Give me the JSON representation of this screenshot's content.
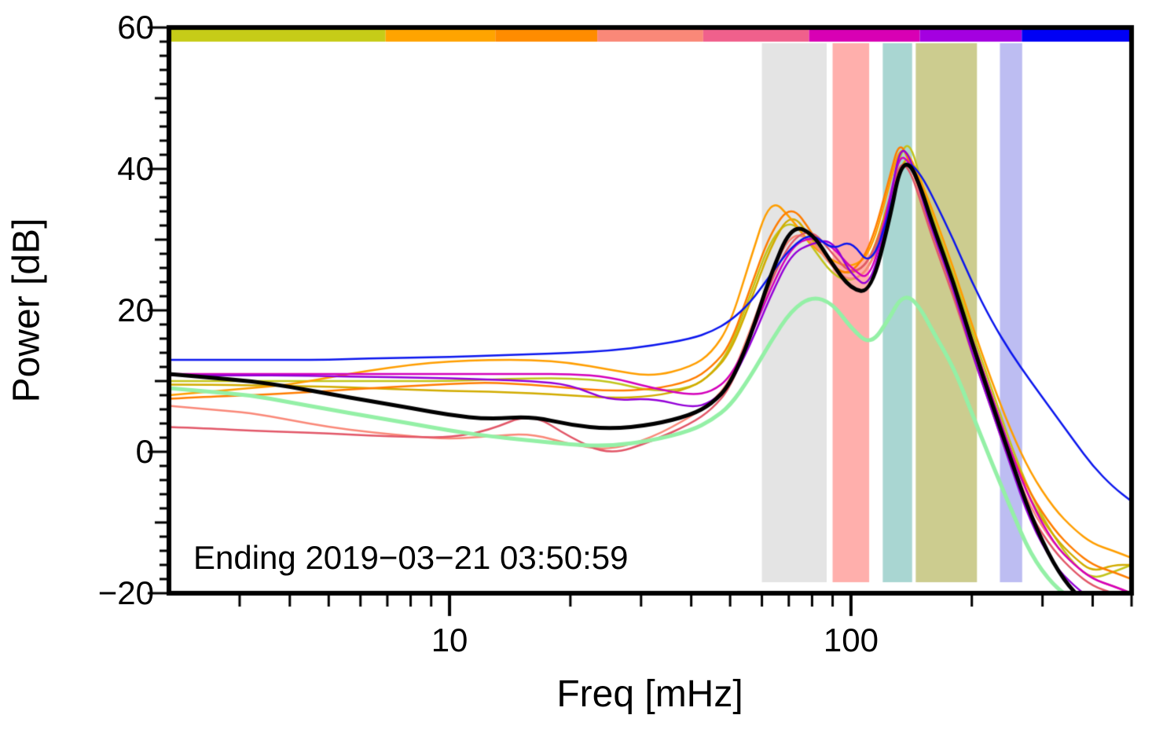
{
  "chart_data": {
    "type": "line",
    "title": "",
    "xlabel": "Freq [mHz]",
    "ylabel": "Power [dB]",
    "annotation": "Ending 2019−03−21 03:50:59",
    "xscale": "log",
    "xlim": [
      2,
      500
    ],
    "ylim": [
      -20,
      60
    ],
    "grid": false,
    "legend": "none",
    "x_tick_values": [
      10,
      100
    ],
    "x_tick_labels": [
      "10",
      "100"
    ],
    "x_minor_ticks": [
      3,
      4,
      5,
      6,
      7,
      8,
      9,
      20,
      30,
      40,
      50,
      60,
      70,
      80,
      90,
      200,
      300,
      400,
      500
    ],
    "y_tick_values": [
      -20,
      0,
      20,
      40,
      60
    ],
    "y_tick_labels": [
      "−20",
      "0",
      "20",
      "40",
      "60"
    ],
    "y_minor_step": 2,
    "bands": [
      {
        "name": "band-gray",
        "from": 60,
        "to": 87,
        "color": "#e4e4e4"
      },
      {
        "name": "band-red",
        "from": 90,
        "to": 111,
        "color": "#ffafac"
      },
      {
        "name": "band-teal",
        "from": 120,
        "to": 142,
        "color": "#a9d6d2"
      },
      {
        "name": "band-olive",
        "from": 145,
        "to": 206,
        "color": "#cccc8f"
      },
      {
        "name": "band-lavender",
        "from": 235,
        "to": 267,
        "color": "#bdbdf2"
      }
    ],
    "top_bar": [
      {
        "color": "#c6cc18",
        "to": 0.225
      },
      {
        "color": "#ffa400",
        "to": 0.339
      },
      {
        "color": "#ff8c00",
        "to": 0.445
      },
      {
        "color": "#fa8878",
        "to": 0.555
      },
      {
        "color": "#f0608c",
        "to": 0.665
      },
      {
        "color": "#d800b4",
        "to": 0.78
      },
      {
        "color": "#a400e0",
        "to": 0.886
      },
      {
        "color": "#0000f5",
        "to": 1.0
      }
    ],
    "x": [
      2,
      2.5,
      3.2,
      4,
      5,
      6.3,
      8,
      10,
      12.5,
      16,
      20,
      25,
      32,
      40,
      45,
      50,
      56,
      63,
      71,
      80,
      90,
      100,
      112,
      125,
      132,
      140,
      150,
      160,
      180,
      200,
      224,
      250,
      280,
      320,
      360,
      400,
      450,
      500
    ],
    "series": [
      {
        "name": "spectrum-yellow-green",
        "color": "#c2c41b",
        "width": 2.5,
        "y": [
          10,
          10,
          10,
          10,
          10,
          10,
          10,
          10,
          10.2,
          10.4,
          10.4,
          10,
          8.5,
          9,
          11,
          14.5,
          22,
          30,
          33,
          29,
          25,
          24,
          26,
          35,
          42,
          44,
          38,
          33,
          25,
          17,
          9,
          1,
          -6,
          -12,
          -16,
          -18,
          -17,
          -16
        ]
      },
      {
        "name": "spectrum-gold",
        "color": "#d2ac00",
        "width": 2.5,
        "y": [
          9.5,
          9.5,
          9.4,
          9.3,
          9.2,
          9,
          8.8,
          8.6,
          8.5,
          8.3,
          8,
          7.6,
          7.8,
          9,
          11,
          14,
          21,
          29,
          34,
          30,
          26,
          25,
          27,
          36,
          40,
          42,
          37,
          32,
          24,
          16,
          8,
          0,
          -7,
          -12,
          -15,
          -17,
          -16,
          -16
        ]
      },
      {
        "name": "spectrum-orange",
        "color": "#ff9e00",
        "width": 2.5,
        "y": [
          8,
          8.5,
          9,
          9.5,
          10.5,
          11.5,
          12.3,
          12.8,
          13,
          13,
          12.6,
          11.6,
          10.6,
          12,
          14,
          18,
          27,
          36,
          33,
          29,
          27,
          26,
          28,
          38,
          43,
          42,
          38,
          34,
          26,
          18,
          10,
          3,
          -3,
          -8,
          -11,
          -13,
          -14,
          -15
        ]
      },
      {
        "name": "spectrum-dark-orange",
        "color": "#ff7d00",
        "width": 2.5,
        "y": [
          7.5,
          7.8,
          8,
          8.3,
          8.6,
          9,
          9.3,
          9.6,
          9.8,
          9.5,
          9,
          8.6,
          8.8,
          10,
          12,
          15,
          23,
          31,
          35,
          31,
          26,
          25,
          29,
          39,
          44,
          41,
          36,
          31,
          23,
          15,
          7,
          0,
          -6,
          -11,
          -14,
          -16,
          -17,
          -18
        ]
      },
      {
        "name": "spectrum-salmon",
        "color": "#fa8878",
        "width": 2.5,
        "y": [
          6.5,
          6,
          5.5,
          4.5,
          3.5,
          2.8,
          2.2,
          1.8,
          2.2,
          2.6,
          1,
          0.2,
          2,
          5,
          7,
          10,
          17,
          25,
          31,
          30,
          26,
          24,
          26,
          34,
          40,
          41,
          36,
          31,
          23,
          15,
          7,
          -1,
          -8,
          -13,
          -16,
          -18,
          -19,
          -20
        ]
      },
      {
        "name": "spectrum-red-pink",
        "color": "#e25768",
        "width": 2.5,
        "y": [
          3.5,
          3.3,
          3,
          2.8,
          2.6,
          2.3,
          2.1,
          2,
          3,
          5.5,
          2,
          -0.5,
          1.5,
          4,
          6,
          9,
          16,
          24,
          30,
          31.5,
          28,
          25,
          27,
          35,
          41,
          40,
          35,
          30,
          22,
          14,
          6,
          -2,
          -9,
          -14,
          -17,
          -19,
          -20,
          -21
        ]
      },
      {
        "name": "spectrum-magenta",
        "color": "#d400bb",
        "width": 2.5,
        "y": [
          11,
          11,
          11,
          11,
          11,
          11,
          11,
          11,
          11,
          11,
          11,
          10.6,
          9,
          8,
          8.5,
          10.5,
          16,
          23,
          29,
          30.5,
          29,
          26,
          24,
          36,
          42,
          41,
          37,
          32,
          24,
          16,
          8,
          0,
          -7,
          -13,
          -16,
          -18,
          -19,
          -20
        ]
      },
      {
        "name": "spectrum-purple",
        "color": "#9400d8",
        "width": 2.5,
        "y": [
          10.8,
          10.8,
          10.8,
          10.8,
          10.7,
          10.6,
          10.5,
          10.4,
          10.2,
          10,
          9.5,
          7.2,
          7.6,
          6.2,
          7,
          9.5,
          15,
          22,
          28,
          29.5,
          30,
          25,
          23,
          35,
          43,
          42,
          36,
          31,
          23,
          14,
          6,
          -2,
          -10,
          -16,
          -19,
          -21,
          -21,
          -22
        ]
      },
      {
        "name": "spectrum-blue",
        "color": "#0b16ee",
        "width": 2.5,
        "y": [
          13,
          13,
          13,
          13,
          13,
          13.2,
          13.3,
          13.4,
          13.6,
          13.8,
          14,
          14.3,
          15,
          16,
          17,
          18.5,
          21,
          25,
          29,
          31,
          28.5,
          30,
          26,
          34,
          40,
          41,
          39,
          36,
          30,
          24,
          18.5,
          14,
          10,
          5.5,
          1.5,
          -2,
          -5,
          -7
        ]
      },
      {
        "name": "reference-pale-green",
        "color": "#94f0a6",
        "width": 5,
        "y": [
          9,
          8.5,
          8,
          7,
          6,
          5,
          4,
          3,
          2.2,
          1.6,
          1,
          0.8,
          1.6,
          3,
          4.5,
          6.5,
          10.5,
          15.5,
          20,
          22,
          21,
          17.5,
          15,
          19,
          21.5,
          22,
          20,
          17,
          12,
          5.5,
          -1.5,
          -8,
          -14.5,
          -19,
          -21,
          -22,
          -23,
          -23.5
        ]
      },
      {
        "name": "mean-spectrum-black",
        "color": "#000000",
        "width": 5,
        "y": [
          11,
          10.5,
          10,
          9.2,
          8.2,
          7.2,
          6.2,
          5.2,
          4.6,
          5,
          3.8,
          3.2,
          3.8,
          5.2,
          6.8,
          9.5,
          16,
          25,
          32,
          31,
          26.5,
          23,
          22.5,
          33,
          40,
          41,
          37,
          32,
          24,
          15.5,
          7,
          -1,
          -9,
          -16,
          -20,
          -22,
          -23,
          -24
        ]
      }
    ]
  }
}
